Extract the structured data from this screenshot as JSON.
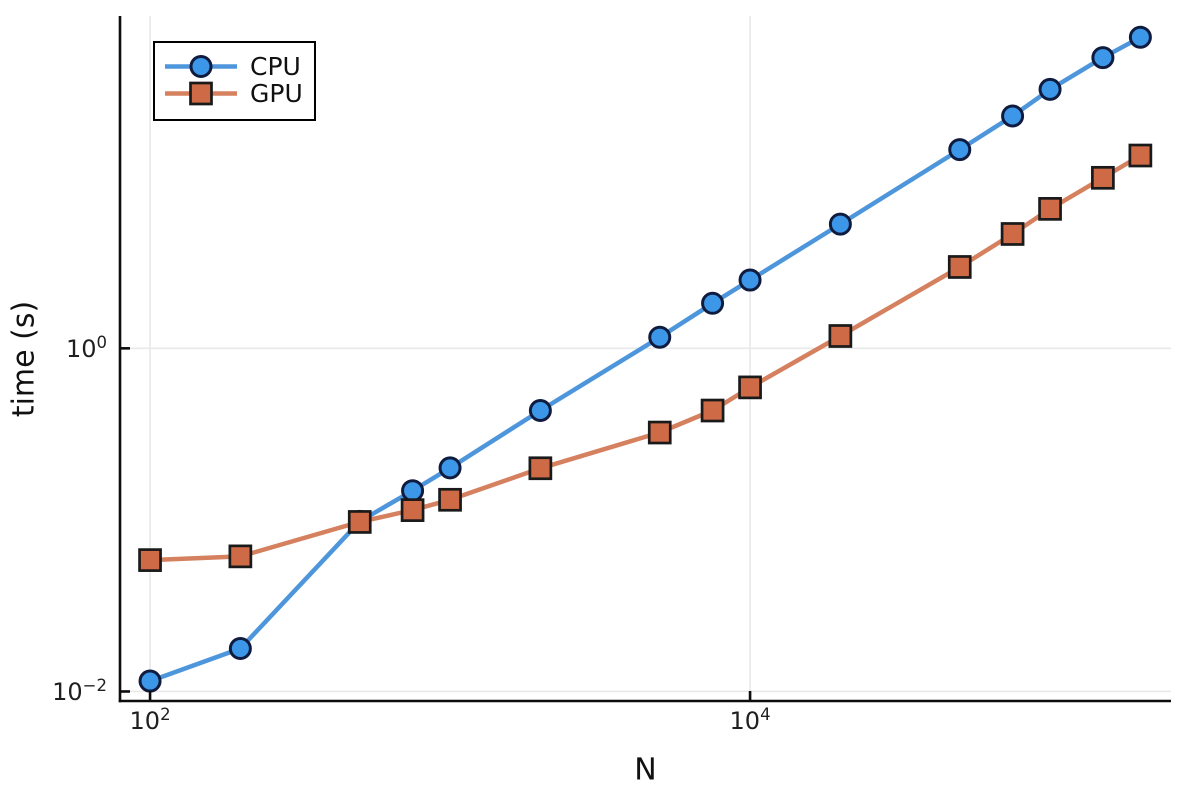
{
  "figure": {
    "background": "#ffffff"
  },
  "chart_data": {
    "type": "line",
    "title": "",
    "xlabel": "N",
    "ylabel": "time (s)",
    "x_scale": "log",
    "y_scale": "log",
    "grid": true,
    "legend_position": "top-left",
    "xlim": [
      79.4,
      253000
    ],
    "ylim": [
      0.0088,
      86.5
    ],
    "x_ticks": [
      {
        "value": 100,
        "base": "10",
        "exp": "2"
      },
      {
        "value": 10000,
        "base": "10",
        "exp": "4"
      }
    ],
    "y_ticks": [
      {
        "value": 0.01,
        "base": "10",
        "exp": "−2"
      },
      {
        "value": 1,
        "base": "10",
        "exp": "0"
      }
    ],
    "x": [
      100,
      200,
      500,
      750,
      1000,
      2000,
      5000,
      7500,
      10000,
      20000,
      50000,
      75000,
      100000,
      150000,
      200000
    ],
    "series": [
      {
        "name": "CPU",
        "marker": "circle",
        "line_color": "#4E96DB",
        "marker_color": "#3C97E8",
        "marker_edge_color": "#101c3f",
        "values": [
          0.0115,
          0.0178,
          0.098,
          0.148,
          0.201,
          0.434,
          1.16,
          1.83,
          2.5,
          5.3,
          14.4,
          22.6,
          32.3,
          49.5,
          65.0
        ]
      },
      {
        "name": "GPU",
        "marker": "square",
        "line_color": "#D5805F",
        "marker_color": "#CE6B46",
        "marker_edge_color": "#1a1a1a",
        "values": [
          0.0583,
          0.0613,
          0.0973,
          0.114,
          0.131,
          0.2,
          0.323,
          0.434,
          0.592,
          1.18,
          2.98,
          4.64,
          6.5,
          9.86,
          13.3
        ]
      }
    ],
    "style": {
      "grid_color": "#e9e9e9",
      "spine_color": "#0d0d0d",
      "text_color": "#1a1a1a"
    }
  }
}
